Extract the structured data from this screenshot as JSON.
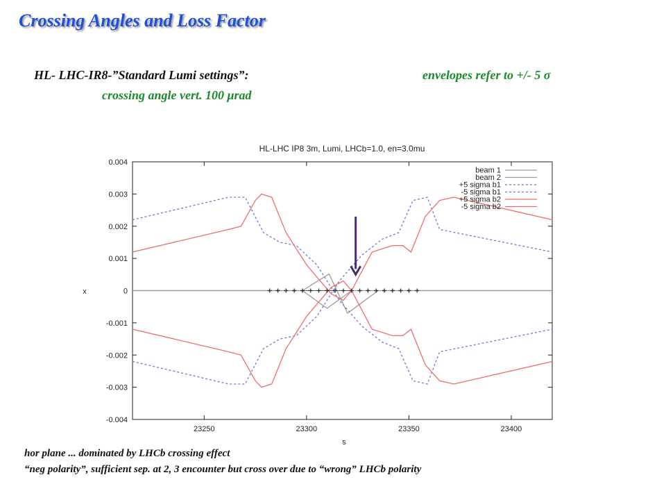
{
  "slide": {
    "title": "Crossing Angles and Loss Factor",
    "settings": "HL- LHC-IR8-”Standard Lumi settings”:",
    "envelopes": "envelopes refer to +/- 5 σ",
    "crossing_angle": "crossing angle vert. 100 μrad"
  },
  "notes": {
    "line1": "hor plane ... dominated by LHCb crossing effect",
    "line2": "“neg polarity”, sufficient sep. at 2, 3 encounter but cross over due to “wrong” LHCb polarity"
  },
  "chart_data": {
    "type": "line",
    "title": "HL-LHC IP8 3m, Lumi, LHCb=1.0, en=3.0mu",
    "xlabel": "s",
    "ylabel": "x",
    "xlim": [
      23215,
      23420
    ],
    "ylim": [
      -0.004,
      0.004
    ],
    "x_ticks": [
      23250,
      23300,
      23350,
      23400
    ],
    "x_tick_labels": [
      "23250",
      "23300",
      "23350",
      "23400"
    ],
    "y_ticks": [
      0.004,
      0.003,
      0.002,
      0.001,
      0,
      -0.001,
      -0.002,
      -0.003,
      -0.004
    ],
    "y_tick_labels": [
      "0.004",
      "0.003",
      "0.002",
      "0.001",
      "0",
      "-0.001",
      "-0.002",
      "-0.003",
      "-0.004"
    ],
    "grid": false,
    "legend_position": "top-right",
    "series": [
      {
        "name": "beam 1",
        "color": "#9a9a9a",
        "dash": "solid",
        "x": [
          23215,
          23298,
          23310,
          23322,
          23420
        ],
        "y": [
          0,
          0,
          -0.00055,
          0,
          0
        ]
      },
      {
        "name": "beam 2",
        "color": "#9a9a9a",
        "dash": "solid",
        "x": [
          23215,
          23298,
          23311,
          23320,
          23335,
          23420
        ],
        "y": [
          0,
          0,
          0.00052,
          -0.0007,
          0,
          0
        ]
      },
      {
        "name": "+5 sigma b1",
        "color": "#6b78d8",
        "dash": "dashed",
        "x": [
          23215,
          23262,
          23270,
          23279,
          23287,
          23295,
          23305,
          23316,
          23327,
          23337,
          23345,
          23352,
          23359,
          23365,
          23420
        ],
        "y": [
          0.0022,
          0.0029,
          0.0029,
          0.0018,
          0.0015,
          0.0014,
          0.0008,
          -0.0003,
          -0.0011,
          -0.0016,
          -0.0018,
          -0.0028,
          -0.0029,
          -0.0019,
          -0.0012
        ]
      },
      {
        "name": "-5 sigma b1",
        "color": "#6b78d8",
        "dash": "dashed",
        "x": [
          23215,
          23262,
          23270,
          23279,
          23287,
          23295,
          23305,
          23316,
          23327,
          23337,
          23345,
          23352,
          23359,
          23365,
          23420
        ],
        "y": [
          -0.0022,
          -0.0029,
          -0.0029,
          -0.0018,
          -0.0015,
          -0.0014,
          -0.0008,
          0.0003,
          0.0011,
          0.0016,
          0.0018,
          0.0028,
          0.0029,
          0.0019,
          0.0012
        ]
      },
      {
        "name": "+5 sigma b2",
        "color": "#f06b6b",
        "dash": "solid",
        "x": [
          23215,
          23262,
          23268,
          23275,
          23278,
          23283,
          23290,
          23300,
          23312,
          23318,
          23322,
          23332,
          23342,
          23347,
          23351,
          23358,
          23365,
          23372,
          23420
        ],
        "y": [
          0.0012,
          0.0019,
          0.002,
          0.0028,
          0.003,
          0.0029,
          0.0018,
          0.0008,
          -0.0001,
          -0.0003,
          0.0,
          0.0012,
          0.0014,
          0.0014,
          0.0012,
          0.0023,
          0.0028,
          0.0029,
          0.0022
        ]
      },
      {
        "name": "-5 sigma b2",
        "color": "#f06b6b",
        "dash": "solid",
        "x": [
          23215,
          23262,
          23268,
          23275,
          23278,
          23283,
          23290,
          23300,
          23312,
          23318,
          23322,
          23332,
          23342,
          23347,
          23351,
          23358,
          23365,
          23372,
          23420
        ],
        "y": [
          -0.0012,
          -0.0019,
          -0.002,
          -0.0028,
          -0.003,
          -0.0029,
          -0.0018,
          -0.0008,
          0.0001,
          0.0003,
          0.0,
          -0.0012,
          -0.0014,
          -0.0014,
          -0.0012,
          -0.0023,
          -0.0028,
          -0.0029,
          -0.0022
        ]
      },
      {
        "name": "",
        "color": "#222222",
        "marker": "+",
        "dash": "none",
        "x": [
          23282,
          23286,
          23290,
          23294,
          23298,
          23302,
          23306,
          23310,
          23314,
          23318,
          23322,
          23326,
          23330,
          23334,
          23338,
          23342,
          23346,
          23350,
          23354
        ],
        "y": [
          0,
          0,
          0,
          0,
          0,
          0,
          0,
          0,
          0,
          0,
          0,
          0,
          0,
          0,
          0,
          0,
          0,
          0,
          0
        ]
      }
    ],
    "annotation": {
      "type": "arrow",
      "color": "#4b2a6b",
      "x_from": 23324,
      "y_from": 0.0023,
      "x_to": 23324,
      "y_to": 0.0005
    }
  }
}
